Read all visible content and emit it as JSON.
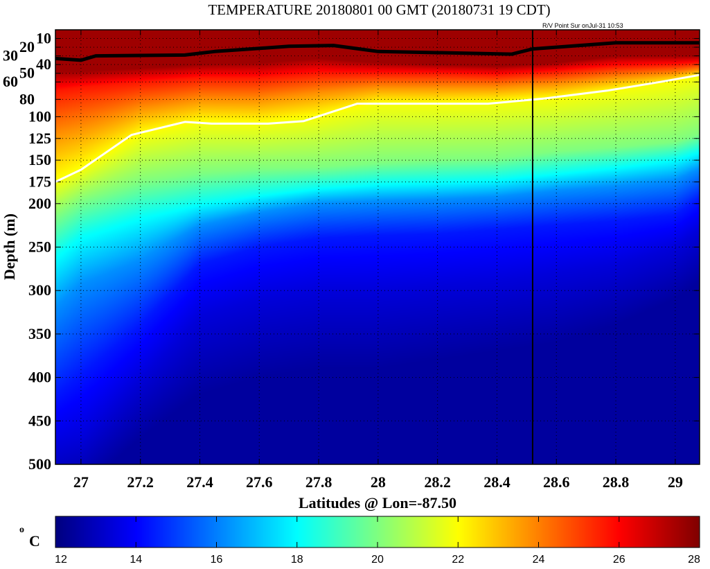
{
  "title": "TEMPERATURE 20180801 00 GMT (20180731 19 CDT)",
  "subtitle": "R/V Point Sur onJul-31 10:53",
  "chart_data": {
    "type": "heatmap",
    "title": "TEMPERATURE 20180801 00 GMT (20180731 19 CDT)",
    "xlabel": "Latitudes @ Lon=-87.50",
    "ylabel": "Depth (m)",
    "xlim": [
      26.914,
      29.082
    ],
    "ylim": [
      0,
      500
    ],
    "y_reversed": true,
    "grid": true,
    "xticks": [
      "27",
      "27.2",
      "27.4",
      "27.6",
      "27.8",
      "28",
      "28.2",
      "28.4",
      "28.6",
      "28.8",
      "29"
    ],
    "yticks": [
      "10",
      "20",
      "30",
      "40",
      "50",
      "60",
      "80",
      "100",
      "125",
      "150",
      "175",
      "200",
      "250",
      "300",
      "350",
      "400",
      "450",
      "500"
    ],
    "colorbar": {
      "label": "oC",
      "label_main": "o",
      "label_unit": "C",
      "range": [
        12,
        28
      ],
      "ticks": [
        "12",
        "14",
        "16",
        "18",
        "20",
        "22",
        "24",
        "26",
        "28"
      ],
      "colormap": "jet"
    },
    "isotherm_temps": [
      28,
      26,
      24,
      22,
      20,
      18,
      16,
      14,
      13,
      12
    ],
    "profiles": [
      {
        "lat": 26.914,
        "depths": [
          48,
          70,
          120,
          175,
          215,
          260,
          320,
          420,
          480,
          540
        ]
      },
      {
        "lat": 27.0,
        "depths": [
          48,
          66,
          112,
          161,
          197,
          237,
          293,
          396,
          470,
          530
        ]
      },
      {
        "lat": 27.2,
        "depths": [
          44,
          60,
          90,
          121,
          175,
          215,
          265,
          340,
          400,
          470
        ]
      },
      {
        "lat": 27.4,
        "depths": [
          40,
          55,
          80,
          107,
          165,
          200,
          225,
          270,
          330,
          420
        ]
      },
      {
        "lat": 27.6,
        "depths": [
          38,
          55,
          80,
          108,
          160,
          190,
          210,
          250,
          310,
          400
        ]
      },
      {
        "lat": 27.8,
        "depths": [
          33,
          50,
          72,
          100,
          158,
          182,
          200,
          240,
          300,
          390
        ]
      },
      {
        "lat": 28.0,
        "depths": [
          38,
          50,
          66,
          85,
          153,
          177,
          197,
          237,
          300,
          390
        ]
      },
      {
        "lat": 28.2,
        "depths": [
          40,
          50,
          66,
          85,
          150,
          175,
          195,
          235,
          295,
          380
        ]
      },
      {
        "lat": 28.4,
        "depths": [
          42,
          52,
          66,
          83,
          148,
          172,
          192,
          230,
          290,
          370
        ]
      },
      {
        "lat": 28.6,
        "depths": [
          38,
          48,
          62,
          79,
          140,
          165,
          185,
          225,
          280,
          360
        ]
      },
      {
        "lat": 28.8,
        "depths": [
          30,
          42,
          55,
          70,
          135,
          158,
          180,
          220,
          270,
          340
        ]
      },
      {
        "lat": 29.0,
        "depths": [
          30,
          40,
          50,
          60,
          129,
          149,
          173,
          213,
          250,
          310
        ]
      },
      {
        "lat": 29.082,
        "depths": [
          30,
          38,
          46,
          52,
          120,
          140,
          160,
          195,
          230,
          290
        ]
      }
    ],
    "lines": [
      {
        "name": "mixed-layer-line",
        "color": "#000000",
        "lat": [
          26.914,
          27.0,
          27.05,
          27.35,
          27.45,
          27.7,
          27.85,
          28.0,
          28.45,
          28.52,
          28.8,
          29.082
        ],
        "depth": [
          33,
          35,
          30,
          29,
          25,
          19,
          18,
          25,
          28,
          22,
          15,
          15
        ]
      },
      {
        "name": "22c-isotherm-line",
        "color": "#ffffff",
        "lat": [
          26.914,
          27.0,
          27.17,
          27.35,
          27.44,
          27.63,
          27.75,
          27.93,
          28.14,
          28.37,
          28.56,
          28.77,
          28.95,
          29.082
        ],
        "depth": [
          175,
          161,
          121,
          106,
          108,
          108,
          105,
          85,
          85,
          85,
          79,
          70,
          60,
          52
        ]
      }
    ],
    "section_marker_lat": 28.52
  }
}
